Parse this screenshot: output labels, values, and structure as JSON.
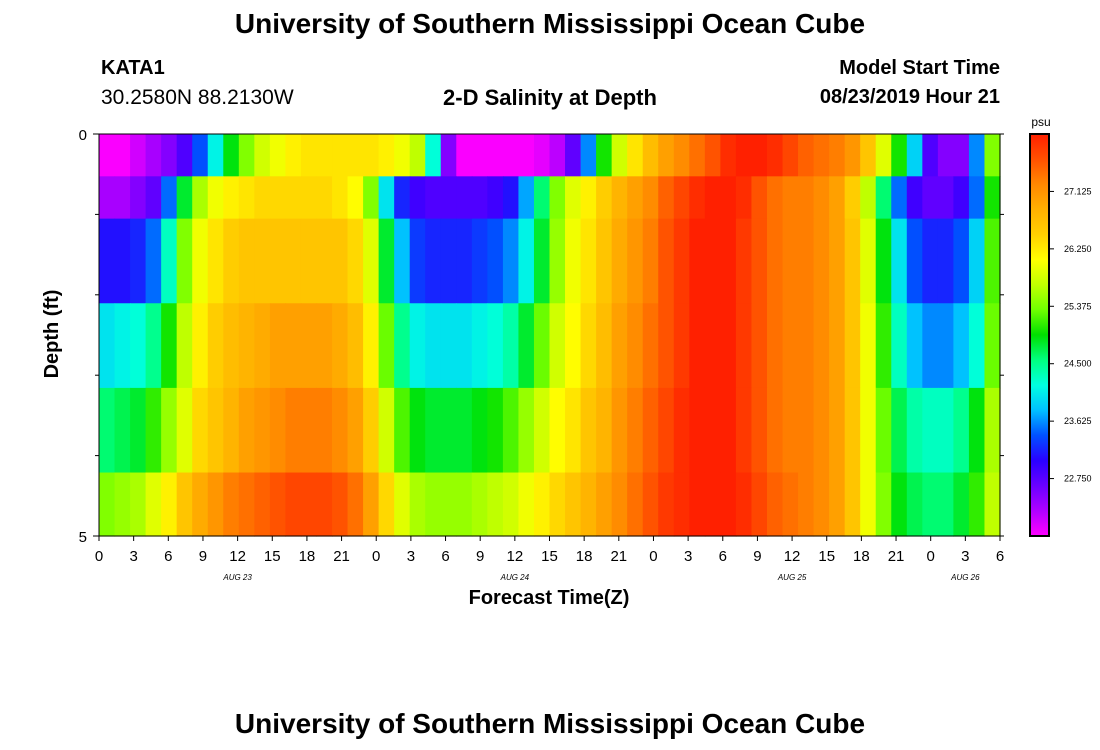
{
  "page": {
    "title": "University of Southern Mississippi Ocean Cube",
    "footer_title": "University of Southern Mississippi Ocean Cube",
    "station": "KATA1",
    "coordinates": "30.2580N 88.2130W",
    "plot_title": "2-D Salinity at Depth",
    "model_start_label": "Model Start Time",
    "model_start_value": "08/23/2019 Hour 21"
  },
  "chart_data": {
    "type": "heatmap",
    "xlabel": "Forecast Time(Z)",
    "ylabel": "Depth (ft)",
    "x_start_hour": 0,
    "x_end_hour": 78,
    "x_tick_labels": [
      "0",
      "3",
      "6",
      "9",
      "12",
      "15",
      "18",
      "21",
      "0",
      "3",
      "6",
      "9",
      "12",
      "15",
      "18",
      "21",
      "0",
      "3",
      "6",
      "9",
      "12",
      "15",
      "18",
      "21",
      "0",
      "3",
      "6"
    ],
    "date_labels": [
      "AUG 23",
      "AUG 24",
      "AUG 25",
      "AUG 26"
    ],
    "y_tick_labels": [
      "0",
      "5"
    ],
    "ylim": [
      0,
      5
    ],
    "colorbar": {
      "unit": "psu",
      "min": 21.875,
      "max": 28.0,
      "tick_values": [
        22.75,
        23.625,
        24.5,
        25.375,
        26.25,
        27.125
      ],
      "tick_labels": [
        "22.750",
        "23.625",
        "24.500",
        "25.375",
        "26.250",
        "27.125"
      ],
      "colors": [
        "#ff00ff",
        "#b000ff",
        "#6a00ff",
        "#2a00ff",
        "#0050ff",
        "#00c0ff",
        "#00ffe0",
        "#00ff80",
        "#00e000",
        "#70ff00",
        "#c0ff00",
        "#ffff00",
        "#ffd000",
        "#ffb000",
        "#ff8800",
        "#ff5000",
        "#ff2000"
      ]
    },
    "depth_layers": [
      [
        21.9,
        21.9,
        22.1,
        22.3,
        22.5,
        22.8,
        23.4,
        24.1,
        24.9,
        25.4,
        25.8,
        26.0,
        26.2,
        26.3,
        26.3,
        26.3,
        26.3,
        26.3,
        26.2,
        26.0,
        25.7,
        24.2,
        22.5,
        21.9,
        21.9,
        21.9,
        21.9,
        21.9,
        22.0,
        22.2,
        22.7,
        23.6,
        25.0,
        25.8,
        26.3,
        26.7,
        27.0,
        27.2,
        27.4,
        27.6,
        27.9,
        28.0,
        28.0,
        27.9,
        27.7,
        27.5,
        27.4,
        27.3,
        27.1,
        26.6,
        25.9,
        25.0,
        23.9,
        22.8,
        22.5,
        22.5,
        23.6,
        25.4
      ],
      [
        22.3,
        22.3,
        22.5,
        22.7,
        23.5,
        24.8,
        25.6,
        26.0,
        26.2,
        26.3,
        26.4,
        26.4,
        26.4,
        26.4,
        26.4,
        26.3,
        26.1,
        25.4,
        24.0,
        23.2,
        22.9,
        22.8,
        22.8,
        22.8,
        22.8,
        22.9,
        23.1,
        23.7,
        24.6,
        25.4,
        25.9,
        26.2,
        26.5,
        26.8,
        27.0,
        27.2,
        27.5,
        27.7,
        27.9,
        28.0,
        28.0,
        27.9,
        27.6,
        27.4,
        27.3,
        27.3,
        27.2,
        27.0,
        26.5,
        25.7,
        24.6,
        23.5,
        22.9,
        22.7,
        22.7,
        22.9,
        23.5,
        25.0
      ],
      [
        23.1,
        23.1,
        23.2,
        23.5,
        24.3,
        25.4,
        26.0,
        26.3,
        26.5,
        26.6,
        26.6,
        26.6,
        26.6,
        26.6,
        26.6,
        26.6,
        26.4,
        25.9,
        24.8,
        23.8,
        23.3,
        23.2,
        23.2,
        23.2,
        23.3,
        23.4,
        23.6,
        24.1,
        24.8,
        25.5,
        26.0,
        26.3,
        26.6,
        26.9,
        27.1,
        27.3,
        27.6,
        27.8,
        28.0,
        28.0,
        28.0,
        27.8,
        27.6,
        27.4,
        27.3,
        27.3,
        27.2,
        27.0,
        26.6,
        25.9,
        24.9,
        24.0,
        23.4,
        23.2,
        23.2,
        23.4,
        23.9,
        25.2
      ],
      [
        24.0,
        24.1,
        24.2,
        24.5,
        25.0,
        25.7,
        26.2,
        26.5,
        26.7,
        26.8,
        26.9,
        27.0,
        27.0,
        27.0,
        27.0,
        26.9,
        26.7,
        26.2,
        25.3,
        24.5,
        24.1,
        24.0,
        24.0,
        24.0,
        24.1,
        24.2,
        24.4,
        24.8,
        25.3,
        25.8,
        26.1,
        26.4,
        26.7,
        27.0,
        27.2,
        27.4,
        27.6,
        27.8,
        28.0,
        28.0,
        28.0,
        27.8,
        27.6,
        27.4,
        27.3,
        27.3,
        27.2,
        27.0,
        26.6,
        26.0,
        25.1,
        24.3,
        23.8,
        23.6,
        23.6,
        23.8,
        24.2,
        25.3
      ],
      [
        24.6,
        24.7,
        24.8,
        25.1,
        25.5,
        25.9,
        26.4,
        26.6,
        26.8,
        27.0,
        27.1,
        27.2,
        27.3,
        27.3,
        27.3,
        27.2,
        27.0,
        26.5,
        25.8,
        25.2,
        24.9,
        24.8,
        24.8,
        24.8,
        24.9,
        25.0,
        25.2,
        25.5,
        25.8,
        26.1,
        26.3,
        26.6,
        26.8,
        27.1,
        27.3,
        27.5,
        27.7,
        27.9,
        28.0,
        28.0,
        28.0,
        27.8,
        27.6,
        27.4,
        27.3,
        27.3,
        27.2,
        27.0,
        26.6,
        26.0,
        25.3,
        24.7,
        24.4,
        24.3,
        24.3,
        24.5,
        24.9,
        25.6
      ],
      [
        25.4,
        25.5,
        25.6,
        25.9,
        26.2,
        26.6,
        26.9,
        27.1,
        27.3,
        27.4,
        27.5,
        27.6,
        27.7,
        27.7,
        27.7,
        27.6,
        27.4,
        27.0,
        26.4,
        25.9,
        25.6,
        25.5,
        25.5,
        25.5,
        25.6,
        25.7,
        25.8,
        26.0,
        26.2,
        26.4,
        26.6,
        26.8,
        27.0,
        27.2,
        27.4,
        27.6,
        27.8,
        27.9,
        28.0,
        28.0,
        28.0,
        27.9,
        27.7,
        27.5,
        27.4,
        27.3,
        27.2,
        27.0,
        26.6,
        26.0,
        25.4,
        24.9,
        24.7,
        24.6,
        24.6,
        24.8,
        25.1,
        25.7
      ]
    ],
    "layer_row_weights": [
      1,
      1,
      2,
      2,
      2,
      1.5
    ]
  }
}
